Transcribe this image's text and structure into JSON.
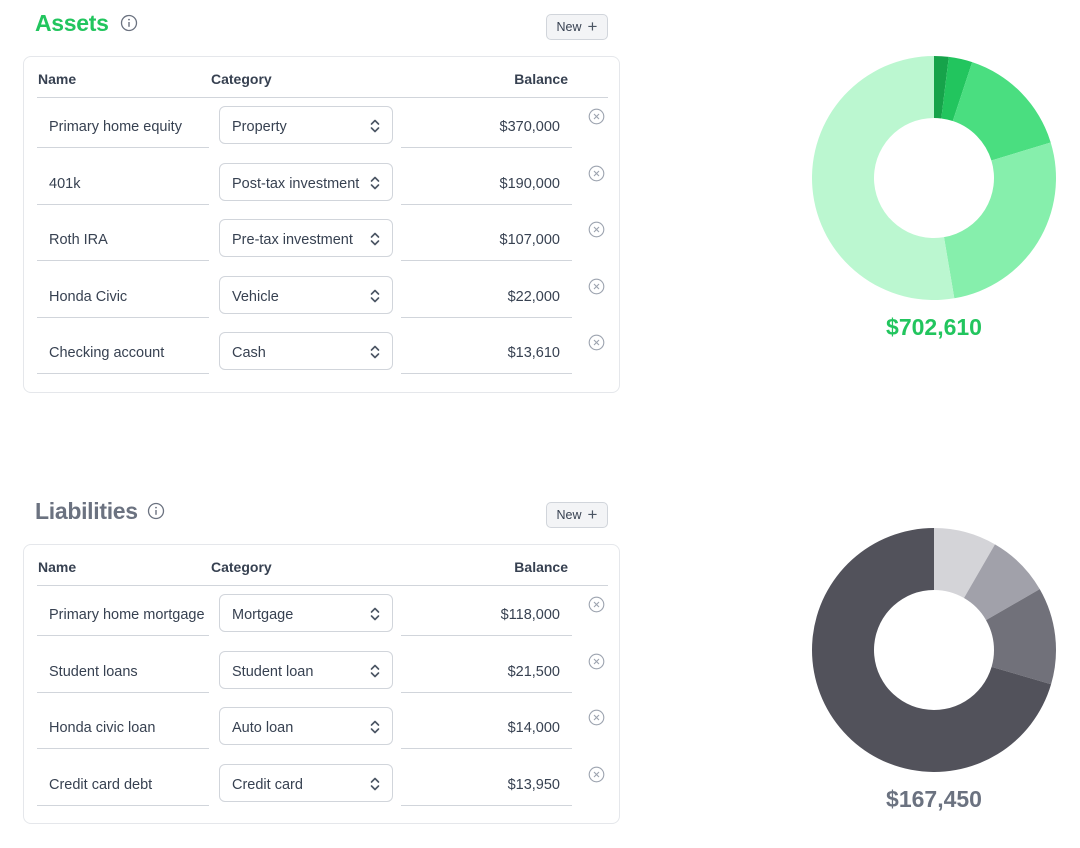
{
  "new_button_label": "New",
  "columns": {
    "name": "Name",
    "category": "Category",
    "balance": "Balance"
  },
  "assets": {
    "title": "Assets",
    "total": "$702,610",
    "rows": [
      {
        "name": "Primary home equity",
        "category": "Property",
        "balance": "$370,000"
      },
      {
        "name": "401k",
        "category": "Post-tax investment",
        "balance": "$190,000"
      },
      {
        "name": "Roth IRA",
        "category": "Pre-tax investment",
        "balance": "$107,000"
      },
      {
        "name": "Honda Civic",
        "category": "Vehicle",
        "balance": "$22,000"
      },
      {
        "name": "Checking account",
        "category": "Cash",
        "balance": "$13,610"
      }
    ]
  },
  "liabilities": {
    "title": "Liabilities",
    "total": "$167,450",
    "rows": [
      {
        "name": "Primary home mortgage",
        "category": "Mortgage",
        "balance": "$118,000"
      },
      {
        "name": "Student loans",
        "category": "Student loan",
        "balance": "$21,500"
      },
      {
        "name": "Honda civic loan",
        "category": "Auto loan",
        "balance": "$14,000"
      },
      {
        "name": "Credit card debt",
        "category": "Credit card",
        "balance": "$13,950"
      }
    ]
  },
  "chart_data": [
    {
      "type": "pie",
      "categories": [
        "Property",
        "Post-tax investment",
        "Pre-tax investment",
        "Vehicle",
        "Cash"
      ],
      "values": [
        370000,
        190000,
        107000,
        22000,
        13610
      ],
      "colors": [
        "#bbf7d0",
        "#86efac",
        "#4ade80",
        "#22c55e",
        "#16a34a"
      ]
    },
    {
      "type": "pie",
      "categories": [
        "Mortgage",
        "Student loan",
        "Auto loan",
        "Credit card"
      ],
      "values": [
        118000,
        21500,
        14000,
        13950
      ],
      "colors": [
        "#52525b",
        "#71717a",
        "#a1a1aa",
        "#d4d4d8"
      ]
    }
  ]
}
